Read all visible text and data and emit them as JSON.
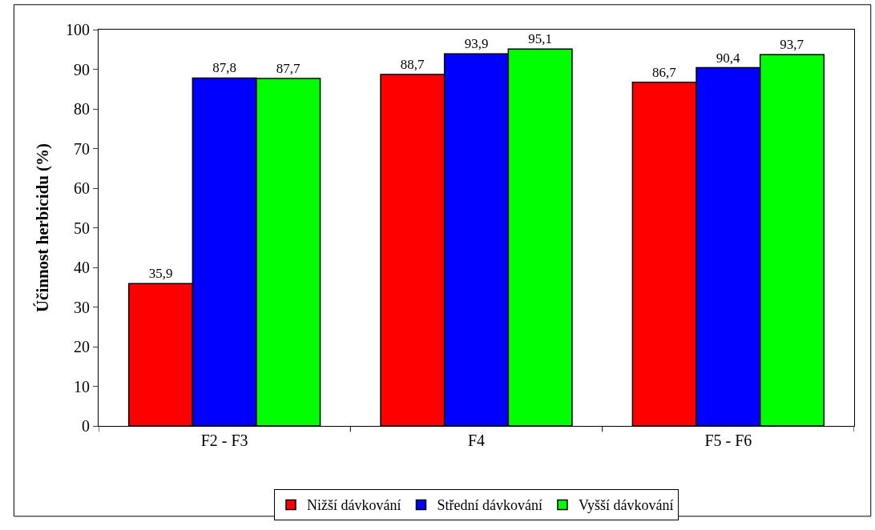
{
  "chart_data": {
    "type": "bar",
    "ylabel": "Účinnost herbicidu (%)",
    "categories": [
      "F2 - F3",
      "F4",
      "F5 - F6"
    ],
    "series": [
      {
        "name": "Nižší dávkování",
        "color": "#ff0000",
        "values": [
          35.9,
          88.7,
          86.7
        ],
        "value_labels": [
          "35,9",
          "88,7",
          "86,7"
        ]
      },
      {
        "name": "Střední dávkování",
        "color": "#0000ff",
        "values": [
          87.8,
          93.9,
          90.4
        ],
        "value_labels": [
          "87,8",
          "93,9",
          "90,4"
        ]
      },
      {
        "name": "Vyšší dávkování",
        "color": "#00ff00",
        "values": [
          87.7,
          95.1,
          93.7
        ],
        "value_labels": [
          "87,7",
          "95,1",
          "93,7"
        ]
      }
    ],
    "ylim": [
      0,
      100
    ],
    "yticks": [
      0,
      10,
      20,
      30,
      40,
      50,
      60,
      70,
      80,
      90,
      100
    ],
    "grid": false,
    "legend": "bottom"
  }
}
